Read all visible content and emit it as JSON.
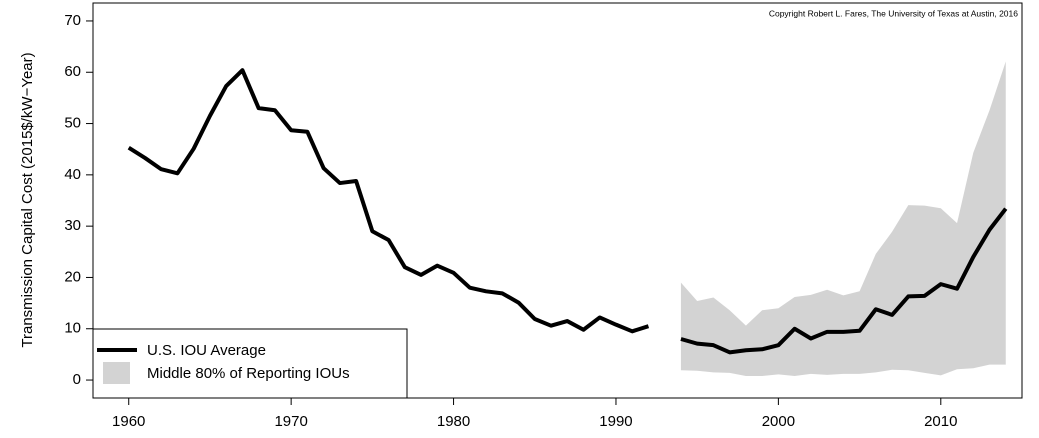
{
  "chart_data": {
    "type": "line",
    "y_label": "Transmission Capital Cost (2015$/kW−Year)",
    "annotation": "Copyright Robert L. Fares, The University of Texas at Austin, 2016",
    "x": [
      1960,
      1961,
      1962,
      1963,
      1964,
      1965,
      1966,
      1967,
      1968,
      1969,
      1970,
      1971,
      1972,
      1973,
      1974,
      1975,
      1976,
      1977,
      1978,
      1979,
      1980,
      1981,
      1982,
      1983,
      1984,
      1985,
      1986,
      1987,
      1988,
      1989,
      1990,
      1991,
      1992,
      1993,
      1994,
      1995,
      1996,
      1997,
      1998,
      1999,
      2000,
      2001,
      2002,
      2003,
      2004,
      2005,
      2006,
      2007,
      2008,
      2009,
      2010,
      2011,
      2012,
      2013,
      2014
    ],
    "series": [
      {
        "name": "U.S. IOU Average",
        "color": "#000000",
        "values": [
          45.3,
          43.3,
          41.1,
          40.3,
          45.1,
          51.5,
          57.3,
          60.4,
          53.0,
          52.6,
          48.7,
          48.4,
          41.3,
          38.4,
          38.8,
          29.0,
          27.3,
          22.0,
          20.5,
          22.3,
          20.9,
          18.0,
          17.3,
          16.9,
          15.1,
          11.9,
          10.6,
          11.5,
          9.8,
          12.2,
          10.8,
          9.5,
          10.5,
          null,
          8.0,
          7.1,
          6.8,
          5.4,
          5.8,
          6.0,
          6.8,
          10.0,
          8.1,
          9.4,
          9.4,
          9.6,
          13.8,
          12.7,
          16.3,
          16.4,
          18.7,
          17.8,
          24.0,
          29.3,
          33.4
        ]
      }
    ],
    "band": {
      "name": "Middle 80% of Reporting IOUs",
      "color": "#d3d3d3",
      "x": [
        1994,
        1995,
        1996,
        1997,
        1998,
        1999,
        2000,
        2001,
        2002,
        2003,
        2004,
        2005,
        2006,
        2007,
        2008,
        2009,
        2010,
        2011,
        2012,
        2013,
        2014
      ],
      "upper": [
        19.0,
        15.4,
        16.1,
        13.6,
        10.6,
        13.6,
        14.0,
        16.2,
        16.6,
        17.6,
        16.5,
        17.3,
        24.6,
        28.9,
        34.1,
        34.0,
        33.5,
        30.6,
        44.3,
        52.6,
        62.1
      ],
      "lower": [
        1.9,
        1.8,
        1.5,
        1.4,
        0.8,
        0.8,
        1.1,
        0.8,
        1.2,
        1.0,
        1.2,
        1.2,
        1.5,
        2.0,
        1.9,
        1.4,
        0.9,
        2.1,
        2.3,
        3.0,
        3.0
      ]
    },
    "xlim": [
      1957.8,
      2015.0
    ],
    "ylim": [
      -3.5,
      73.5
    ],
    "xticks": [
      1960,
      1970,
      1980,
      1990,
      2000,
      2010
    ],
    "yticks": [
      0,
      10,
      20,
      30,
      40,
      50,
      60,
      70
    ],
    "grid": false,
    "legend": "bottom-left"
  }
}
